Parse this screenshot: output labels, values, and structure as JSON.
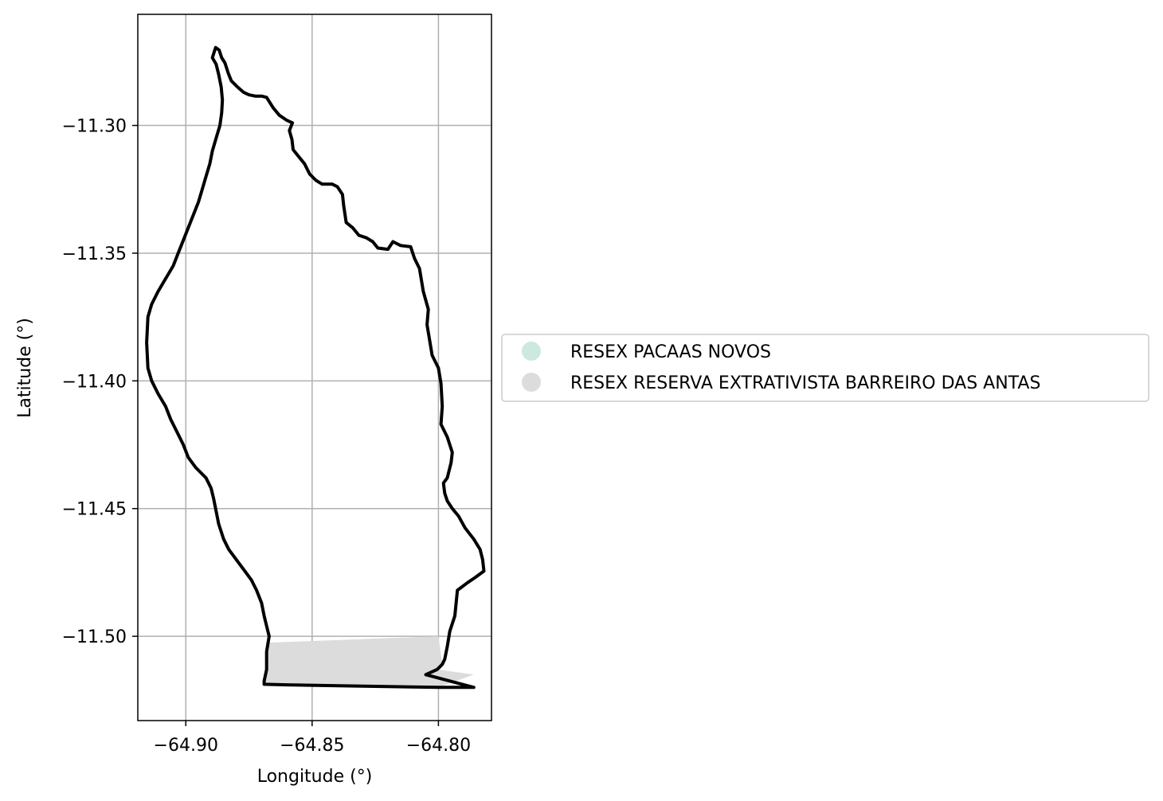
{
  "chart_data": {
    "type": "map",
    "xlabel": "Longitude (°)",
    "ylabel": "Latitude (°)",
    "xlim": [
      -64.919,
      -64.779
    ],
    "ylim": [
      -11.533,
      -11.2565
    ],
    "xticks": [
      -64.9,
      -64.85,
      -64.8
    ],
    "xtick_labels": [
      "−64.90",
      "−64.85",
      "−64.80"
    ],
    "yticks": [
      -11.3,
      -11.35,
      -11.4,
      -11.45,
      -11.5
    ],
    "ytick_labels": [
      "−11.30",
      "−11.35",
      "−11.40",
      "−11.45",
      "−11.50"
    ],
    "grid": true,
    "legend_position": "right",
    "series": [
      {
        "name": "RESEX PACAAS NOVOS",
        "color": "#cde9dd"
      },
      {
        "name": "RESEX RESERVA EXTRATIVISTA BARREIRO DAS ANTAS",
        "color": "#dcdcdc"
      }
    ],
    "outline": [
      [
        -64.8882,
        -11.2695
      ],
      [
        -64.8868,
        -11.2705
      ],
      [
        -64.8858,
        -11.2735
      ],
      [
        -64.8845,
        -11.2755
      ],
      [
        -64.8832,
        -11.2795
      ],
      [
        -64.882,
        -11.2825
      ],
      [
        -64.8795,
        -11.285
      ],
      [
        -64.8772,
        -11.287
      ],
      [
        -64.875,
        -11.288
      ],
      [
        -64.8725,
        -11.2885
      ],
      [
        -64.87,
        -11.2885
      ],
      [
        -64.868,
        -11.289
      ],
      [
        -64.8655,
        -11.293
      ],
      [
        -64.863,
        -11.296
      ],
      [
        -64.86,
        -11.298
      ],
      [
        -64.8578,
        -11.299
      ],
      [
        -64.859,
        -11.302
      ],
      [
        -64.858,
        -11.3055
      ],
      [
        -64.8575,
        -11.3095
      ],
      [
        -64.8555,
        -11.312
      ],
      [
        -64.853,
        -11.315
      ],
      [
        -64.851,
        -11.319
      ],
      [
        -64.8485,
        -11.3215
      ],
      [
        -64.846,
        -11.323
      ],
      [
        -64.842,
        -11.323
      ],
      [
        -64.84,
        -11.324
      ],
      [
        -64.839,
        -11.3255
      ],
      [
        -64.838,
        -11.327
      ],
      [
        -64.8375,
        -11.3315
      ],
      [
        -64.8365,
        -11.338
      ],
      [
        -64.834,
        -11.34
      ],
      [
        -64.8315,
        -11.343
      ],
      [
        -64.8285,
        -11.344
      ],
      [
        -64.826,
        -11.3455
      ],
      [
        -64.824,
        -11.348
      ],
      [
        -64.82,
        -11.3485
      ],
      [
        -64.818,
        -11.3455
      ],
      [
        -64.815,
        -11.347
      ],
      [
        -64.811,
        -11.3475
      ],
      [
        -64.8095,
        -11.352
      ],
      [
        -64.8075,
        -11.356
      ],
      [
        -64.806,
        -11.365
      ],
      [
        -64.804,
        -11.372
      ],
      [
        -64.8045,
        -11.378
      ],
      [
        -64.8025,
        -11.39
      ],
      [
        -64.8,
        -11.395
      ],
      [
        -64.799,
        -11.401
      ],
      [
        -64.7985,
        -11.41
      ],
      [
        -64.799,
        -11.417
      ],
      [
        -64.7965,
        -11.422
      ],
      [
        -64.7945,
        -11.428
      ],
      [
        -64.795,
        -11.432
      ],
      [
        -64.7965,
        -11.438
      ],
      [
        -64.798,
        -11.44
      ],
      [
        -64.7975,
        -11.444
      ],
      [
        -64.7965,
        -11.447
      ],
      [
        -64.7945,
        -11.45
      ],
      [
        -64.792,
        -11.453
      ],
      [
        -64.7895,
        -11.4575
      ],
      [
        -64.786,
        -11.462
      ],
      [
        -64.7835,
        -11.466
      ],
      [
        -64.7825,
        -11.47
      ],
      [
        -64.782,
        -11.4745
      ],
      [
        -64.7855,
        -11.477
      ],
      [
        -64.7885,
        -11.479
      ],
      [
        -64.7925,
        -11.482
      ],
      [
        -64.793,
        -11.487
      ],
      [
        -64.7935,
        -11.492
      ],
      [
        -64.7955,
        -11.498
      ],
      [
        -64.7965,
        -11.504
      ],
      [
        -64.7975,
        -11.509
      ],
      [
        -64.7985,
        -11.511
      ],
      [
        -64.8005,
        -11.513
      ],
      [
        -64.805,
        -11.515
      ],
      [
        -64.786,
        -11.52
      ],
      [
        -64.8,
        -11.52
      ],
      [
        -64.83,
        -11.5195
      ],
      [
        -64.86,
        -11.519
      ],
      [
        -64.869,
        -11.5188
      ],
      [
        -64.869,
        -11.5175
      ],
      [
        -64.868,
        -11.513
      ],
      [
        -64.868,
        -11.506
      ],
      [
        -64.867,
        -11.5
      ],
      [
        -64.868,
        -11.496
      ],
      [
        -64.869,
        -11.492
      ],
      [
        -64.87,
        -11.487
      ],
      [
        -64.872,
        -11.482
      ],
      [
        -64.874,
        -11.478
      ],
      [
        -64.877,
        -11.474
      ],
      [
        -64.88,
        -11.47
      ],
      [
        -64.883,
        -11.466
      ],
      [
        -64.885,
        -11.462
      ],
      [
        -64.887,
        -11.456
      ],
      [
        -64.888,
        -11.451
      ],
      [
        -64.889,
        -11.446
      ],
      [
        -64.89,
        -11.442
      ],
      [
        -64.892,
        -11.438
      ],
      [
        -64.896,
        -11.434
      ],
      [
        -64.899,
        -11.43
      ],
      [
        -64.901,
        -11.425
      ],
      [
        -64.9035,
        -11.42
      ],
      [
        -64.906,
        -11.415
      ],
      [
        -64.908,
        -11.41
      ],
      [
        -64.911,
        -11.405
      ],
      [
        -64.9135,
        -11.4
      ],
      [
        -64.915,
        -11.395
      ],
      [
        -64.9155,
        -11.385
      ],
      [
        -64.915,
        -11.375
      ],
      [
        -64.9135,
        -11.37
      ],
      [
        -64.911,
        -11.365
      ],
      [
        -64.908,
        -11.36
      ],
      [
        -64.905,
        -11.355
      ],
      [
        -64.903,
        -11.35
      ],
      [
        -64.901,
        -11.345
      ],
      [
        -64.899,
        -11.34
      ],
      [
        -64.897,
        -11.335
      ],
      [
        -64.895,
        -11.33
      ],
      [
        -64.8935,
        -11.325
      ],
      [
        -64.892,
        -11.32
      ],
      [
        -64.8905,
        -11.315
      ],
      [
        -64.8895,
        -11.31
      ],
      [
        -64.888,
        -11.305
      ],
      [
        -64.8865,
        -11.3
      ],
      [
        -64.8858,
        -11.295
      ],
      [
        -64.8855,
        -11.29
      ],
      [
        -64.886,
        -11.285
      ],
      [
        -64.887,
        -11.28
      ],
      [
        -64.888,
        -11.276
      ],
      [
        -64.8895,
        -11.2735
      ],
      [
        -64.8882,
        -11.2695
      ]
    ],
    "shaded_polygon": [
      [
        -64.868,
        -11.5025
      ],
      [
        -64.8,
        -11.5
      ],
      [
        -64.7985,
        -11.511
      ],
      [
        -64.8005,
        -11.513
      ],
      [
        -64.786,
        -11.515
      ],
      [
        -64.8,
        -11.52
      ],
      [
        -64.869,
        -11.5188
      ],
      [
        -64.868,
        -11.513
      ],
      [
        -64.868,
        -11.506
      ]
    ]
  }
}
